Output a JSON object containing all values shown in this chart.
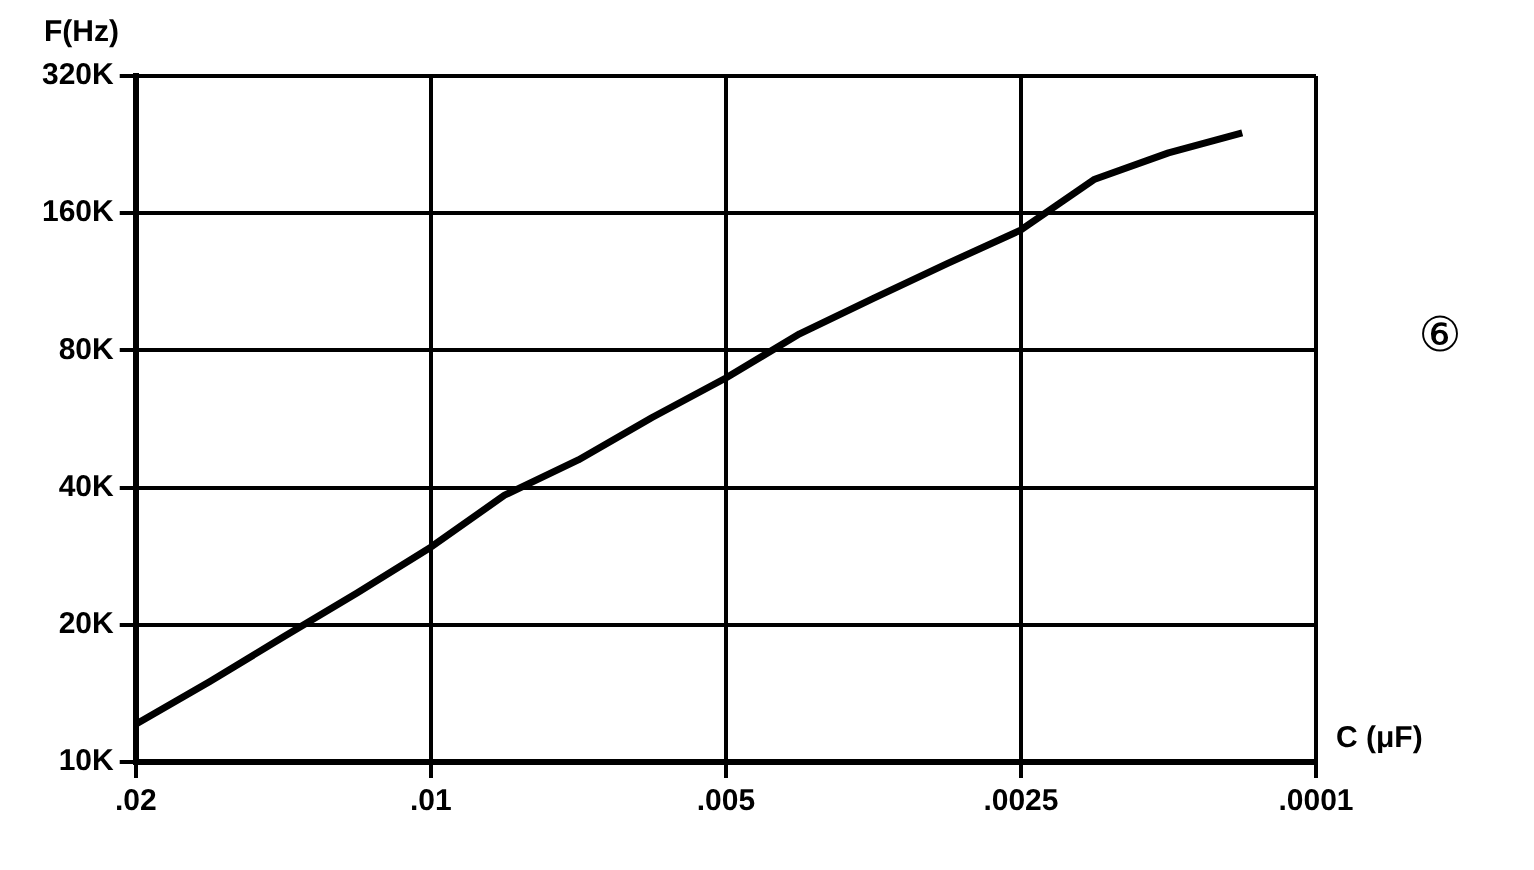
{
  "chart_data": {
    "type": "line",
    "ylabel": "F(Hz)",
    "xlabel": "C (μF)",
    "annotations": [
      "⑥"
    ],
    "categories": [
      ".02",
      null,
      null,
      null,
      ".01",
      null,
      null,
      null,
      ".005",
      null,
      null,
      null,
      ".0025",
      null,
      null,
      null,
      ".0001"
    ],
    "series": [
      {
        "color": "#000000",
        "values": [
          12100,
          15000,
          18800,
          23500,
          29600,
          38500,
          46000,
          57000,
          69600,
          87000,
          104000,
          124000,
          147000,
          190000,
          217000,
          240000,
          null
        ]
      }
    ],
    "ylim": [
      10000,
      320000
    ],
    "yticks": [
      {
        "value": 10000,
        "label": "10K"
      },
      {
        "value": 20000,
        "label": "20K"
      },
      {
        "value": 40000,
        "label": "40K"
      },
      {
        "value": 80000,
        "label": "80K"
      },
      {
        "value": 160000,
        "label": "160K"
      },
      {
        "value": 320000,
        "label": "320K"
      }
    ],
    "log": "y",
    "grid": true,
    "legend": false,
    "marker": "none",
    "line_style": "solid"
  }
}
